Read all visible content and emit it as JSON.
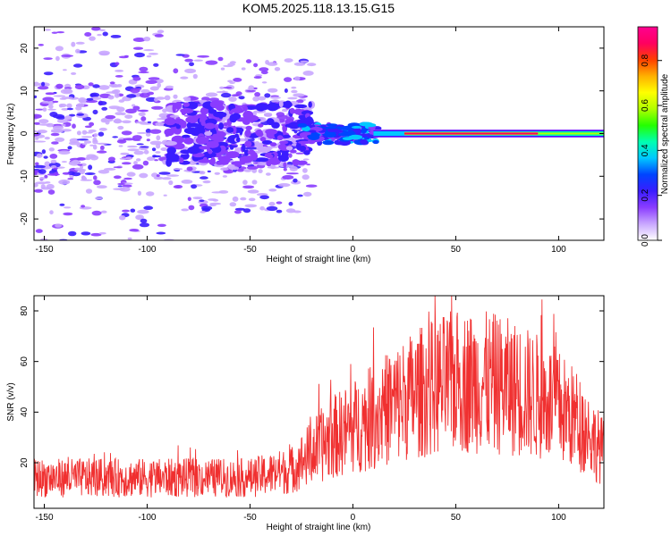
{
  "figure": {
    "title": "KOM5.2025.118.13.15.G15"
  },
  "colorbar": {
    "label": "Normalized spectral amplitude",
    "range": [
      0.0,
      0.95
    ],
    "ticks": [
      0.0,
      0.2,
      0.4,
      0.6,
      0.8
    ],
    "colormap": [
      "#ffffff",
      "#c9a7ff",
      "#8a3cff",
      "#3a1dff",
      "#0044ff",
      "#00c8ff",
      "#00ffb0",
      "#24ff00",
      "#b0ff00",
      "#ffff00",
      "#ffb000",
      "#ff4000",
      "#ff0060",
      "#ff0090"
    ]
  },
  "chart_data": [
    {
      "type": "heatmap",
      "title": "",
      "xlabel": "Height of straight line (km)",
      "ylabel": "Frequency (Hz)",
      "xlim": [
        -155,
        122
      ],
      "ylim": [
        -25,
        25
      ],
      "xticks": [
        -150,
        -100,
        -50,
        0,
        50,
        100
      ],
      "yticks": [
        -20,
        -10,
        0,
        10,
        20
      ],
      "grid": false,
      "colorbar_label": "Normalized spectral amplitude",
      "description_values": {
        "strong_band": {
          "x_range": [
            10,
            122
          ],
          "freq": 0,
          "amplitude_max": 0.95
        },
        "transition_band": {
          "x_range": [
            -25,
            12
          ],
          "freq": 0,
          "amplitude": 0.3
        },
        "scatter_region": {
          "x_range": [
            -155,
            -20
          ],
          "freq_range": [
            -25,
            25
          ],
          "amplitude_range": [
            0.05,
            0.25
          ]
        }
      }
    },
    {
      "type": "line",
      "title": "",
      "xlabel": "Height of straight line (km)",
      "ylabel": "SNR (v/v)",
      "xlim": [
        -155,
        122
      ],
      "ylim": [
        2,
        86
      ],
      "xticks": [
        -150,
        -100,
        -50,
        0,
        50,
        100
      ],
      "yticks": [
        20,
        40,
        60,
        80
      ],
      "grid": false,
      "series": [
        {
          "color": "#f03030",
          "x": [
            -155,
            -130,
            -100,
            -75,
            -50,
            -30,
            -20,
            -10,
            0,
            10,
            20,
            30,
            40,
            50,
            60,
            70,
            80,
            90,
            100,
            110,
            122
          ],
          "values": [
            14,
            14,
            14,
            14,
            14,
            17,
            24,
            30,
            34,
            38,
            43,
            47,
            50,
            52,
            52,
            51,
            49,
            46,
            42,
            36,
            24
          ]
        }
      ]
    }
  ]
}
